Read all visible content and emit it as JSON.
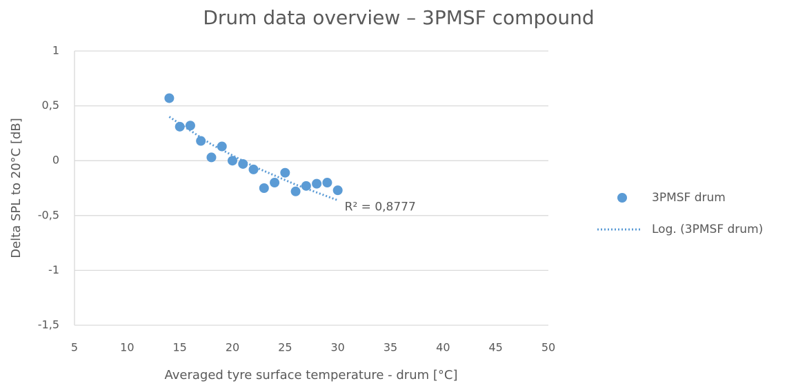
{
  "chart_data": {
    "type": "scatter",
    "title": "Drum data overview – 3PMSF compound",
    "x_label": "Averaged tyre surface temperature - drum [°C]",
    "y_label": "Delta SPL to 20°C [dB]",
    "series": [
      {
        "name": "3PMSF drum",
        "color": "#5b9bd5",
        "x": [
          14,
          15,
          16,
          17,
          18,
          19,
          20,
          21,
          22,
          23,
          24,
          25,
          26,
          27,
          28,
          29,
          30
        ],
        "values": [
          0.57,
          0.31,
          0.32,
          0.18,
          0.03,
          0.13,
          0.0,
          -0.03,
          -0.08,
          -0.25,
          -0.2,
          -0.11,
          -0.28,
          -0.23,
          -0.21,
          -0.2,
          -0.27
        ]
      },
      {
        "name": "Log. (3PMSF drum)",
        "color": "#5b9bd5",
        "line_style": "dotted",
        "x": [
          14,
          18,
          22,
          26,
          30
        ],
        "values": [
          0.4,
          0.149,
          -0.052,
          -0.218,
          -0.361
        ]
      }
    ],
    "annotation": "R² = 0,8777",
    "xlim": [
      5,
      50
    ],
    "xticks": [
      5,
      10,
      15,
      20,
      25,
      30,
      35,
      40,
      45,
      50
    ],
    "ylim": [
      -1.5,
      1
    ],
    "yticks": [
      {
        "value": -1.5,
        "label": "-1,5"
      },
      -1,
      {
        "value": -0.5,
        "label": "-0,5"
      },
      0,
      {
        "value": 0.5,
        "label": "0,5"
      },
      1
    ],
    "grid": true,
    "legend": "right"
  }
}
